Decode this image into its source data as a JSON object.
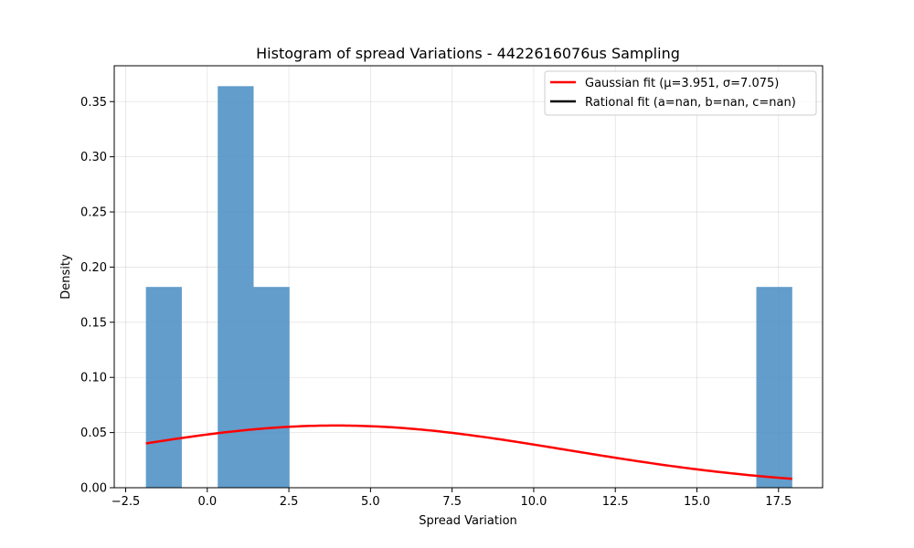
{
  "chart_data": {
    "type": "bar",
    "title": "Histogram of spread Variations - 4422616076us Sampling",
    "xlabel": "Spread Variation",
    "ylabel": "Density",
    "xlim": [
      -2.85,
      18.85
    ],
    "ylim": [
      0,
      0.3825
    ],
    "grid": true,
    "legend_position": "top-right",
    "x_ticks": [
      {
        "value": -2.5,
        "label": "−2.5"
      },
      {
        "value": 0.0,
        "label": "0.0"
      },
      {
        "value": 2.5,
        "label": "2.5"
      },
      {
        "value": 5.0,
        "label": "5.0"
      },
      {
        "value": 7.5,
        "label": "7.5"
      },
      {
        "value": 10.0,
        "label": "10.0"
      },
      {
        "value": 12.5,
        "label": "12.5"
      },
      {
        "value": 15.0,
        "label": "15.0"
      },
      {
        "value": 17.5,
        "label": "17.5"
      }
    ],
    "y_ticks": [
      {
        "value": 0.0,
        "label": "0.00"
      },
      {
        "value": 0.05,
        "label": "0.05"
      },
      {
        "value": 0.1,
        "label": "0.10"
      },
      {
        "value": 0.15,
        "label": "0.15"
      },
      {
        "value": 0.2,
        "label": "0.20"
      },
      {
        "value": 0.25,
        "label": "0.25"
      },
      {
        "value": 0.3,
        "label": "0.30"
      },
      {
        "value": 0.35,
        "label": "0.35"
      }
    ],
    "histogram": {
      "color": "#4c8fc4",
      "bins": [
        {
          "x0": -1.88,
          "x1": -0.78,
          "density": 0.182
        },
        {
          "x0": 0.32,
          "x1": 1.42,
          "density": 0.364
        },
        {
          "x0": 1.42,
          "x1": 2.52,
          "density": 0.182
        },
        {
          "x0": 16.82,
          "x1": 17.92,
          "density": 0.182
        }
      ]
    },
    "series": [
      {
        "name": "Gaussian fit (μ=3.951, σ=7.075)",
        "kind": "gaussian",
        "mu": 3.951,
        "sigma": 7.075,
        "x_range": [
          -1.88,
          17.92
        ],
        "color": "#ff0000"
      },
      {
        "name": "Rational fit (a=nan, b=nan, c=nan)",
        "kind": "rational",
        "values": [],
        "color": "#000000"
      }
    ]
  }
}
